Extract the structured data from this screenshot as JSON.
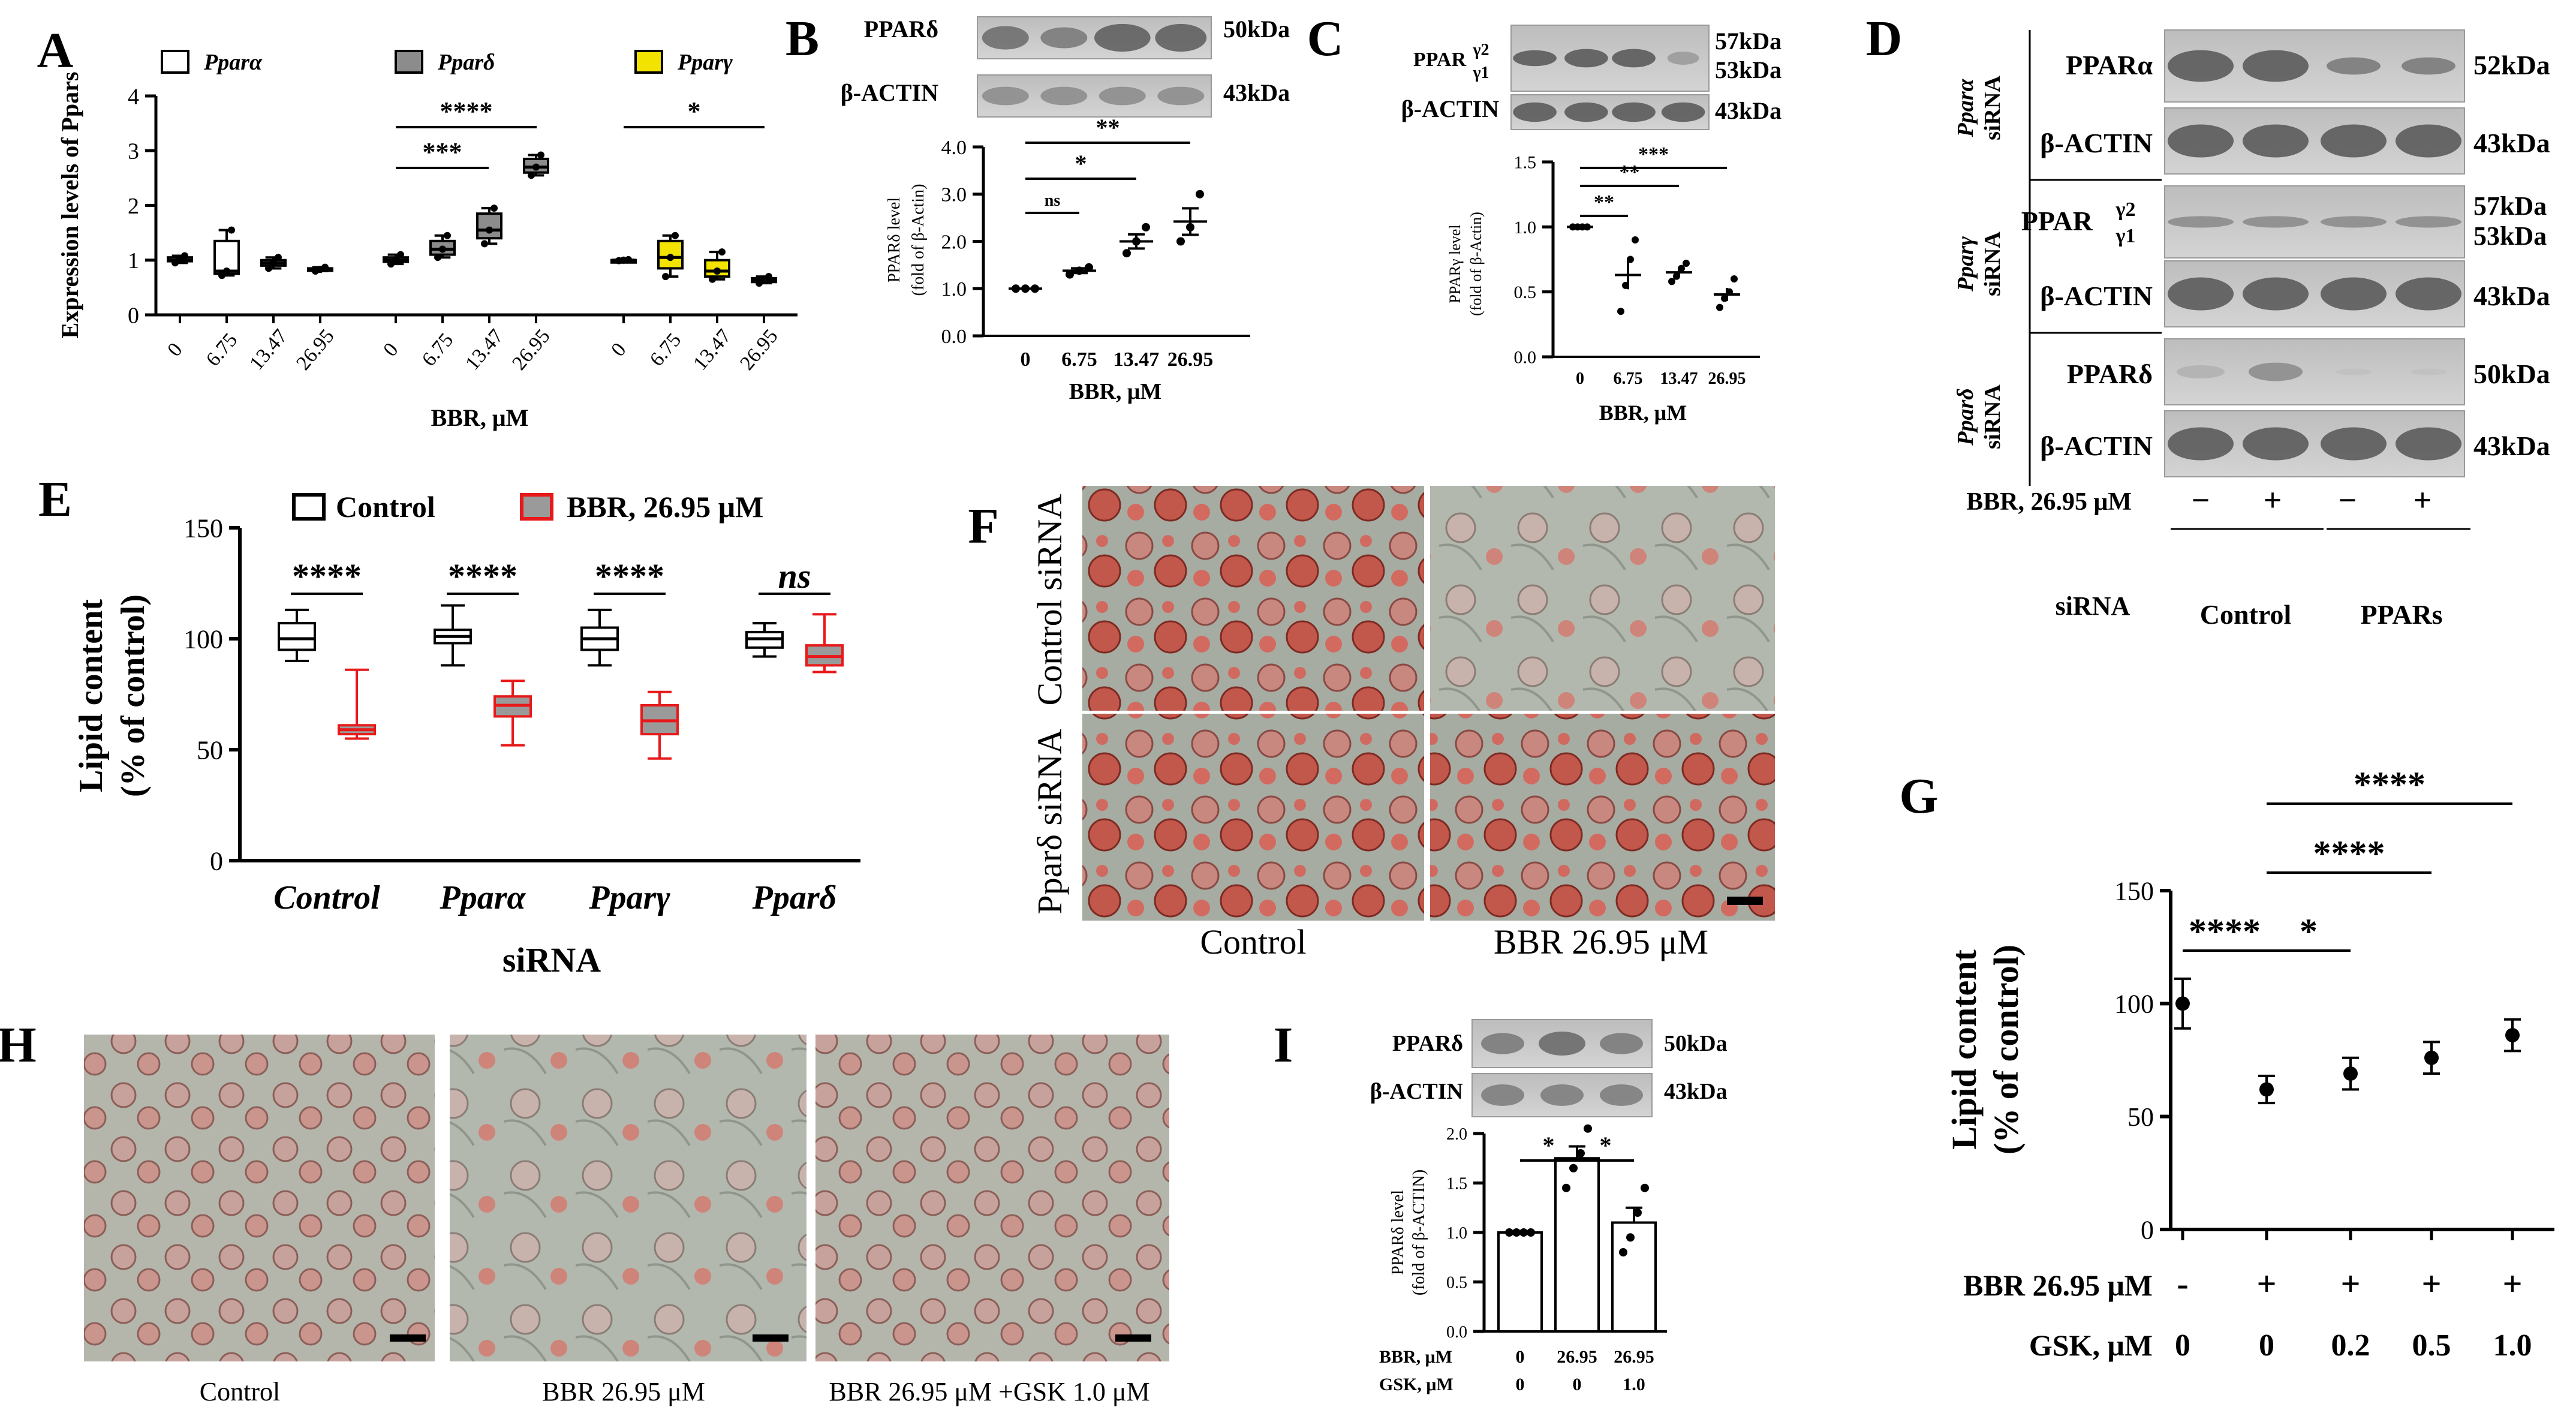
{
  "panel_labels": [
    "A",
    "B",
    "C",
    "D",
    "E",
    "F",
    "G",
    "H",
    "I"
  ],
  "colors": {
    "black": "#000000",
    "gray_box": "#8c8c8c",
    "yellow_box": "#f2e300",
    "red": "#e8191a",
    "red_fill": "#9a9a9a",
    "blot_bg": "#c8c8c8",
    "band": "#4a4a4a",
    "micro_bg": "#9aa39a",
    "micro_cell": "#c0392b"
  },
  "chart_data": [
    {
      "id": "A",
      "type": "box",
      "ylabel": "Expression levels of Ppars",
      "xlabel": "BBR, μM",
      "ylim": [
        0,
        4
      ],
      "yticks": [
        0,
        1,
        2,
        3,
        4
      ],
      "legend": [
        "Pparα",
        "Pparδ",
        "Pparγ"
      ],
      "groups": [
        {
          "name": "Pparα",
          "fill": "#ffffff",
          "categories": [
            "0",
            "6.75",
            "13.47",
            "26.95"
          ],
          "boxes": [
            {
              "min": 0.95,
              "q1": 0.98,
              "med": 1.0,
              "q3": 1.05,
              "max": 1.08
            },
            {
              "min": 0.72,
              "q1": 0.75,
              "med": 0.8,
              "q3": 1.35,
              "max": 1.55
            },
            {
              "min": 0.85,
              "q1": 0.9,
              "med": 0.95,
              "q3": 1.0,
              "max": 1.05
            },
            {
              "min": 0.8,
              "q1": 0.82,
              "med": 0.83,
              "q3": 0.85,
              "max": 0.87
            }
          ]
        },
        {
          "name": "Pparδ",
          "fill": "#8c8c8c",
          "categories": [
            "0",
            "6.75",
            "13.47",
            "26.95"
          ],
          "boxes": [
            {
              "min": 0.93,
              "q1": 0.97,
              "med": 1.0,
              "q3": 1.05,
              "max": 1.1
            },
            {
              "min": 1.05,
              "q1": 1.1,
              "med": 1.2,
              "q3": 1.35,
              "max": 1.45
            },
            {
              "min": 1.3,
              "q1": 1.4,
              "med": 1.55,
              "q3": 1.85,
              "max": 1.95
            },
            {
              "min": 2.55,
              "q1": 2.6,
              "med": 2.7,
              "q3": 2.85,
              "max": 2.92
            }
          ]
        },
        {
          "name": "Pparγ",
          "fill": "#f2e300",
          "categories": [
            "0",
            "6.75",
            "13.47",
            "26.95"
          ],
          "boxes": [
            {
              "min": 0.99,
              "q1": 1.0,
              "med": 1.0,
              "q3": 1.0,
              "max": 1.01
            },
            {
              "min": 0.7,
              "q1": 0.85,
              "med": 1.05,
              "q3": 1.35,
              "max": 1.45
            },
            {
              "min": 0.65,
              "q1": 0.7,
              "med": 0.8,
              "q3": 1.0,
              "max": 1.15
            },
            {
              "min": 0.58,
              "q1": 0.6,
              "med": 0.63,
              "q3": 0.67,
              "max": 0.7
            }
          ]
        }
      ],
      "significance": [
        "****",
        "***",
        "*"
      ]
    },
    {
      "id": "B",
      "type": "scatter",
      "ylabel": "PPARδ level (fold of β-Actin)",
      "xlabel": "BBR, μM",
      "ylim": [
        0,
        4
      ],
      "yticks": [
        "0.0",
        "1.0",
        "2.0",
        "3.0",
        "4.0"
      ],
      "categories": [
        "0",
        "6.75",
        "13.47",
        "26.95"
      ],
      "points": [
        [
          1.0,
          1.0,
          1.0
        ],
        [
          1.3,
          1.38,
          1.45
        ],
        [
          1.75,
          2.0,
          2.3
        ],
        [
          2.0,
          2.3,
          3.0
        ]
      ],
      "means": [
        1.0,
        1.38,
        2.0,
        2.42
      ],
      "sem": [
        0.0,
        0.05,
        0.15,
        0.28
      ],
      "significance": [
        "ns",
        "*",
        "**"
      ],
      "blot": {
        "rows": [
          "PPARδ",
          "β-ACTIN"
        ],
        "sizes": [
          "50kDa",
          "43kDa"
        ]
      }
    },
    {
      "id": "C",
      "type": "scatter",
      "ylabel": "PPARγ level (fold of β-Actin)",
      "xlabel": "BBR, μM",
      "ylim": [
        0,
        1.5
      ],
      "yticks": [
        "0.0",
        "0.5",
        "1.0",
        "1.5"
      ],
      "categories": [
        "0",
        "6.75",
        "13.47",
        "26.95"
      ],
      "points": [
        [
          1.0,
          1.0,
          1.0,
          1.0
        ],
        [
          0.35,
          0.55,
          0.75,
          0.9
        ],
        [
          0.58,
          0.62,
          0.68,
          0.72
        ],
        [
          0.38,
          0.45,
          0.5,
          0.6
        ]
      ],
      "means": [
        1.0,
        0.63,
        0.65,
        0.48
      ],
      "sem": [
        0.0,
        0.11,
        0.03,
        0.05
      ],
      "significance": [
        "**",
        "**",
        "***"
      ],
      "blot": {
        "rows": [
          "PPAR",
          "β-ACTIN"
        ],
        "sub": [
          "γ2",
          "γ1"
        ],
        "sizes": [
          "57kDa",
          "53kDa",
          "43kDa"
        ]
      }
    },
    {
      "id": "E",
      "type": "box",
      "ylabel1": "Lipid content",
      "ylabel2": "(% of control)",
      "xlabel": "siRNA",
      "ylim": [
        0,
        150
      ],
      "yticks": [
        0,
        50,
        100,
        150
      ],
      "legend": [
        "Control",
        "BBR, 26.95 μM"
      ],
      "categories": [
        "Control",
        "Pparα",
        "Pparγ",
        "Pparδ"
      ],
      "control": [
        {
          "min": 90,
          "q1": 95,
          "med": 100,
          "q3": 107,
          "max": 113
        },
        {
          "min": 88,
          "q1": 98,
          "med": 101,
          "q3": 104,
          "max": 115
        },
        {
          "min": 88,
          "q1": 95,
          "med": 100,
          "q3": 105,
          "max": 113
        },
        {
          "min": 92,
          "q1": 96,
          "med": 100,
          "q3": 103,
          "max": 107
        }
      ],
      "bbr": [
        {
          "min": 55,
          "q1": 57,
          "med": 59,
          "q3": 61,
          "max": 86
        },
        {
          "min": 52,
          "q1": 65,
          "med": 70,
          "q3": 74,
          "max": 81
        },
        {
          "min": 46,
          "q1": 57,
          "med": 63,
          "q3": 70,
          "max": 76
        },
        {
          "min": 85,
          "q1": 88,
          "med": 92,
          "q3": 97,
          "max": 111
        }
      ],
      "significance": [
        "****",
        "****",
        "****",
        "ns"
      ]
    },
    {
      "id": "G",
      "type": "scatter",
      "ylabel1": "Lipid content",
      "ylabel2": "(% of control)",
      "ylim": [
        0,
        150
      ],
      "yticks": [
        0,
        50,
        100,
        150
      ],
      "means": [
        100,
        62,
        69,
        76,
        86
      ],
      "err": [
        11,
        6,
        7,
        7,
        7
      ],
      "row1_label": "BBR 26.95 μM",
      "row1": [
        "-",
        "+",
        "+",
        "+",
        "+"
      ],
      "row2_label": "GSK, μM",
      "row2": [
        "0",
        "0",
        "0.2",
        "0.5",
        "1.0"
      ],
      "significance": [
        "****",
        "*",
        "****",
        "****"
      ]
    },
    {
      "id": "I",
      "type": "bar",
      "ylabel": "PPARδ level (fold of β-ACTIN)",
      "ylim": [
        0,
        2.0
      ],
      "yticks": [
        "0.0",
        "0.5",
        "1.0",
        "1.5",
        "2.0"
      ],
      "values": [
        1.0,
        1.75,
        1.1
      ],
      "sem": [
        0.0,
        0.12,
        0.15
      ],
      "points": [
        [
          1.0,
          1.0,
          1.0,
          1.0
        ],
        [
          1.45,
          1.65,
          1.8,
          2.05
        ],
        [
          0.8,
          0.95,
          1.2,
          1.45
        ]
      ],
      "row1_label": "BBR, μM",
      "row1": [
        "0",
        "26.95",
        "26.95"
      ],
      "row2_label": "GSK, μM",
      "row2": [
        "0",
        "0",
        "1.0"
      ],
      "significance": [
        "*",
        "*"
      ],
      "blot": {
        "rows": [
          "PPARδ",
          "β-ACTIN"
        ],
        "sizes": [
          "50kDa",
          "43kDa"
        ]
      }
    }
  ],
  "blot_D": {
    "rows": [
      {
        "gene": "Pparα",
        "sirna": "siRNA",
        "protein": "PPARα",
        "size": "52kDa"
      },
      {
        "gene": "",
        "sirna": "",
        "protein": "β-ACTIN",
        "size": "43kDa"
      },
      {
        "gene": "Pparγ",
        "sirna": "siRNA",
        "protein": "PPAR",
        "sub": [
          "γ2",
          "γ1"
        ],
        "size": "57kDa",
        "size2": "53kDa"
      },
      {
        "gene": "",
        "sirna": "",
        "protein": "β-ACTIN",
        "size": "43kDa"
      },
      {
        "gene": "Pparδ",
        "sirna": "siRNA",
        "protein": "PPARδ",
        "size": "50kDa"
      },
      {
        "gene": "",
        "sirna": "",
        "protein": "β-ACTIN",
        "size": "43kDa"
      }
    ],
    "bbr_label": "BBR, 26.95 μM",
    "bbr": [
      "−",
      "+",
      "−",
      "+"
    ],
    "sirna_label": "siRNA",
    "groups": [
      "Control",
      "PPARs"
    ]
  },
  "micro_F": {
    "row_labels": [
      "Control siRNA",
      "Pparδ siRNA"
    ],
    "col_labels": [
      "Control",
      "BBR 26.95 μM"
    ]
  },
  "micro_H": {
    "labels": [
      "Control",
      "BBR 26.95 μM",
      "BBR 26.95 μM +GSK 1.0 μM"
    ]
  }
}
